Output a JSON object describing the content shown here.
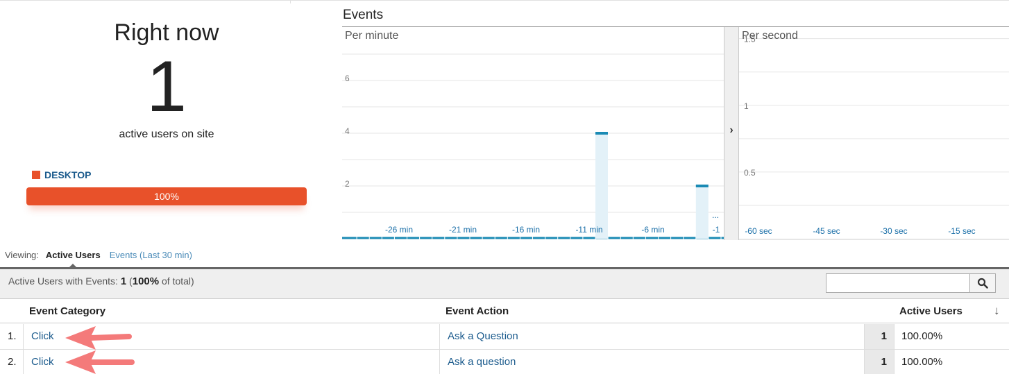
{
  "summary": {
    "title": "Right now",
    "count": "1",
    "subtitle": "active users on site",
    "device_label": "DESKTOP",
    "device_share": 1.0,
    "device_share_label": "100%",
    "device_color": "#e8512a"
  },
  "events": {
    "title": "Events",
    "per_minute": {
      "label": "Per minute",
      "y_ticks": [
        "6",
        "4",
        "2"
      ],
      "x_ticks": [
        "-26 min",
        "-21 min",
        "-16 min",
        "-11 min",
        "-6 min",
        "-1"
      ],
      "ellipsis": "...",
      "bars": [
        {
          "minute": -11,
          "value": 4
        },
        {
          "minute": -3,
          "value": 2
        }
      ],
      "ylim": [
        0,
        7
      ]
    },
    "per_second": {
      "label": "Per second",
      "y_ticks": [
        "1.5",
        "1",
        "0.5"
      ],
      "x_ticks": [
        "-60 sec",
        "-45 sec",
        "-30 sec",
        "-15 sec"
      ],
      "ylim": [
        0,
        1.8
      ]
    },
    "series_color": "#1a8ab4",
    "expand_icon": "chevron-right-icon"
  },
  "viewing": {
    "label": "Viewing:",
    "active_tab": "Active Users",
    "other_tab": "Events (Last 30 min)"
  },
  "table": {
    "summary_label": "Active Users with Events:",
    "summary_value": "1",
    "summary_pct": "100%",
    "summary_suffix": "of total)",
    "search_placeholder": "",
    "columns": {
      "category": "Event Category",
      "action": "Event Action",
      "users": "Active Users"
    },
    "rows": [
      {
        "num": "1.",
        "category": "Click",
        "action": "Ask a Question",
        "users": "1",
        "pct": "100.00%"
      },
      {
        "num": "2.",
        "category": "Click",
        "action": "Ask a question",
        "users": "1",
        "pct": "100.00%"
      }
    ]
  },
  "annotation_color": "#f47a7a"
}
